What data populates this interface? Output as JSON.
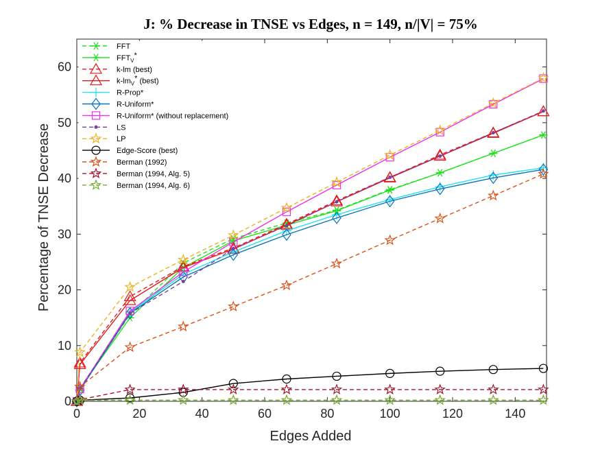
{
  "chart_data": {
    "type": "line",
    "title": "J: % Decrease in TNSE vs Edges, n = 149, n/|V| = 75%",
    "xlabel": "Edges Added",
    "ylabel": "Percentage of TNSE Decrease",
    "xlim": [
      0,
      150
    ],
    "ylim": [
      0,
      65
    ],
    "xticks": [
      0,
      20,
      40,
      60,
      80,
      100,
      120,
      140
    ],
    "yticks": [
      0,
      10,
      20,
      30,
      40,
      50,
      60
    ],
    "grid": false,
    "legend_position": "top-left",
    "x": [
      0,
      1,
      17,
      34,
      50,
      67,
      83,
      100,
      116,
      133,
      149
    ],
    "series": [
      {
        "name": "FFT",
        "label_main": "FFT",
        "label_sub": "",
        "label_sup": "",
        "label_tail": "",
        "color": "#1fe01f",
        "dash": "6,4",
        "marker": "asterisk",
        "values": [
          0,
          2.3,
          15.6,
          24.8,
          29.2,
          32.0,
          34.3,
          38.0,
          41.0,
          44.5,
          47.8
        ]
      },
      {
        "name": "FFT_V*",
        "label_main": "FFT",
        "label_sub": "V",
        "label_sup": "*",
        "label_tail": "",
        "color": "#1fe01f",
        "dash": "",
        "marker": "asterisk",
        "values": [
          0,
          2.3,
          15.0,
          24.0,
          28.8,
          31.6,
          34.2,
          37.9,
          41.0,
          44.5,
          47.8
        ]
      },
      {
        "name": "k-lm (best)",
        "label_main": "k-lm (best)",
        "label_sub": "",
        "label_sup": "",
        "label_tail": "",
        "color": "#e31a1c",
        "dash": "6,4",
        "marker": "triangle",
        "values": [
          0,
          6.9,
          18.8,
          24.2,
          27.5,
          31.8,
          36.0,
          40.2,
          44.2,
          48.2,
          52.0
        ]
      },
      {
        "name": "k-lm_V* (best)",
        "label_main": "k-lm",
        "label_sub": "V",
        "label_sup": "*",
        "label_tail": " (best)",
        "color": "#e31a1c",
        "dash": "",
        "marker": "triangle",
        "values": [
          0,
          6.6,
          18.1,
          24.0,
          27.3,
          31.6,
          35.8,
          40.1,
          44.0,
          48.1,
          52.0
        ]
      },
      {
        "name": "R-Prop*",
        "label_main": "R-Prop*",
        "label_sub": "",
        "label_sup": "",
        "label_tail": "",
        "color": "#22e0ee",
        "dash": "",
        "marker": "plus",
        "values": [
          0,
          2.0,
          16.0,
          22.8,
          26.8,
          30.6,
          33.5,
          36.2,
          38.5,
          40.6,
          41.9
        ]
      },
      {
        "name": "R-Uniform*",
        "label_main": "R-Uniform*",
        "label_sub": "",
        "label_sup": "",
        "label_tail": "",
        "color": "#0a72bd",
        "dash": "",
        "marker": "diamond",
        "values": [
          0,
          2.0,
          15.8,
          22.3,
          26.3,
          29.9,
          32.9,
          35.9,
          38.1,
          40.1,
          41.6
        ]
      },
      {
        "name": "R-Uniform* (without replacement)",
        "label_main": "R-Uniform* (without replacement)",
        "label_sub": "",
        "label_sup": "",
        "label_tail": "",
        "color": "#ee2ee8",
        "dash": "",
        "marker": "square",
        "values": [
          0,
          2.2,
          16.2,
          23.2,
          28.6,
          34.0,
          38.8,
          43.8,
          48.3,
          53.3,
          57.9
        ]
      },
      {
        "name": "LS",
        "label_main": "LS",
        "label_sub": "",
        "label_sup": "",
        "label_tail": "",
        "color": "#7c3ea0",
        "dash": "6,4",
        "marker": "dot",
        "values": [
          0,
          2.3,
          15.8,
          21.5,
          27.4,
          31.5,
          35.8,
          40.2,
          44.0,
          48.2,
          52.1
        ]
      },
      {
        "name": "LP",
        "label_main": "LP",
        "label_sub": "",
        "label_sup": "",
        "label_tail": "",
        "color": "#edb120",
        "dash": "6,4",
        "marker": "star",
        "values": [
          0,
          8.8,
          20.5,
          25.4,
          29.8,
          34.7,
          39.3,
          44.2,
          48.6,
          53.5,
          58.0
        ]
      },
      {
        "name": "Edge-Score (best)",
        "label_main": "Edge-Score (best)",
        "label_sub": "",
        "label_sup": "",
        "label_tail": "",
        "color": "#000000",
        "dash": "",
        "marker": "circle",
        "values": [
          0,
          0.2,
          0.6,
          1.6,
          3.2,
          4.0,
          4.5,
          5.0,
          5.4,
          5.7,
          5.9
        ]
      },
      {
        "name": "Berman (1992)",
        "label_main": "Berman (1992)",
        "label_sub": "",
        "label_sup": "",
        "label_tail": "",
        "color": "#d95319",
        "dash": "6,4",
        "marker": "star",
        "values": [
          0,
          2.6,
          9.7,
          13.4,
          17.0,
          20.8,
          24.7,
          28.9,
          32.8,
          36.9,
          40.8
        ]
      },
      {
        "name": "Berman (1994, Alg. 5)",
        "label_main": "Berman (1994, Alg. 5)",
        "label_sub": "",
        "label_sup": "",
        "label_tail": "",
        "color": "#a2142f",
        "dash": "6,4",
        "marker": "star",
        "values": [
          0,
          0.3,
          2.1,
          2.1,
          2.1,
          2.1,
          2.1,
          2.1,
          2.1,
          2.1,
          2.1
        ]
      },
      {
        "name": "Berman (1994, Alg. 6)",
        "label_main": "Berman (1994, Alg. 6)",
        "label_sub": "",
        "label_sup": "",
        "label_tail": "",
        "color": "#77ac30",
        "dash": "6,4",
        "marker": "star",
        "values": [
          0,
          0.2,
          0.2,
          0.2,
          0.2,
          0.2,
          0.2,
          0.2,
          0.2,
          0.2,
          0.2
        ]
      }
    ]
  }
}
